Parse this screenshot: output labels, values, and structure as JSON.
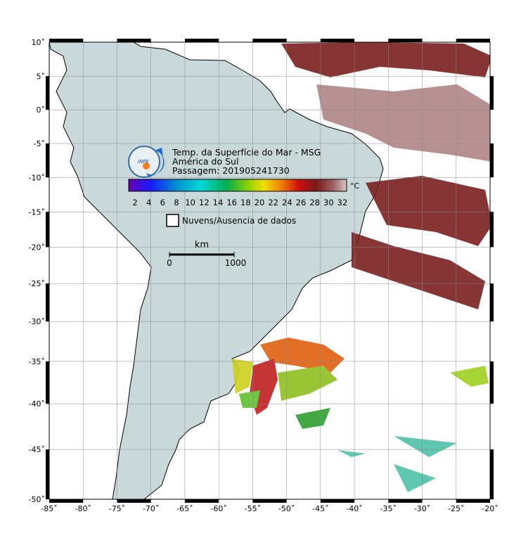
{
  "map": {
    "title": "Temp. da Superfície do Mar - MSG",
    "subtitle": "América do Sul",
    "pass": "Passagem: 201905241730",
    "logo": "INPE",
    "colorbar": {
      "ticks": [
        2,
        4,
        6,
        8,
        10,
        12,
        14,
        16,
        18,
        20,
        22,
        24,
        26,
        28,
        30,
        32
      ],
      "unit": "°C"
    },
    "legend": "Nuvens/Ausencia de dados",
    "scale": {
      "unit": "km",
      "start": "0",
      "end": "1000"
    },
    "lon_ticks": [
      {
        "value": -85,
        "label": "-85˚"
      },
      {
        "value": -80,
        "label": "-80˚"
      },
      {
        "value": -75,
        "label": "-75˚"
      },
      {
        "value": -70,
        "label": "-70˚"
      },
      {
        "value": -65,
        "label": "-65˚"
      },
      {
        "value": -60,
        "label": "-60˚"
      },
      {
        "value": -55,
        "label": "-55˚"
      },
      {
        "value": -50,
        "label": "-50˚"
      },
      {
        "value": -45,
        "label": "-45˚"
      },
      {
        "value": -40,
        "label": "-40˚"
      },
      {
        "value": -35,
        "label": "-35˚"
      },
      {
        "value": -30,
        "label": "-30˚"
      },
      {
        "value": -25,
        "label": "-25˚"
      },
      {
        "value": -20,
        "label": "-20˚"
      }
    ],
    "lat_ticks": [
      {
        "value": 10,
        "label": "10˚"
      },
      {
        "value": 5,
        "label": "5˚"
      },
      {
        "value": 0,
        "label": "0˚"
      },
      {
        "value": -5,
        "label": "-5˚"
      },
      {
        "value": -10,
        "label": "-10˚"
      },
      {
        "value": -15,
        "label": "-15˚"
      },
      {
        "value": -20,
        "label": "-20˚"
      },
      {
        "value": -25,
        "label": "-25˚"
      },
      {
        "value": -30,
        "label": "-30˚"
      },
      {
        "value": -35,
        "label": "-35˚"
      },
      {
        "value": -40,
        "label": "-40˚"
      },
      {
        "value": -45,
        "label": "-45˚"
      },
      {
        "value": -50,
        "label": "-50˚"
      }
    ],
    "lonlim": [
      -85,
      -20
    ],
    "latlim": [
      -50,
      10
    ]
  }
}
